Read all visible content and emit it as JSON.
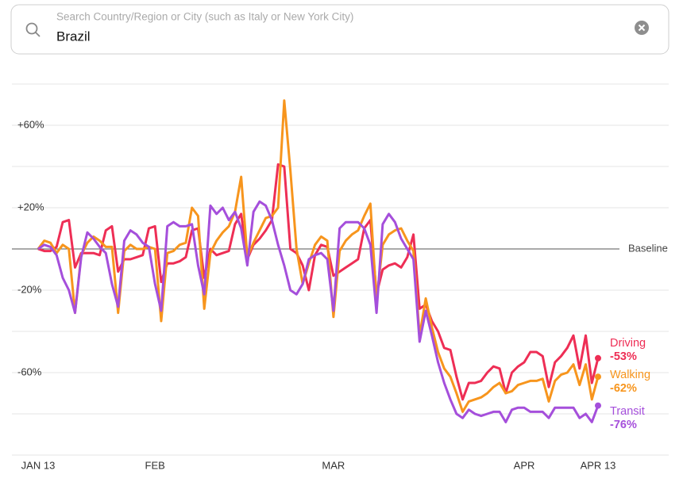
{
  "search": {
    "placeholder": "Search Country/Region or City (such as Italy or New York City)",
    "query": "Brazil"
  },
  "chart_data": {
    "type": "line",
    "x": [
      0,
      1,
      2,
      3,
      4,
      5,
      6,
      7,
      8,
      9,
      10,
      11,
      12,
      13,
      14,
      15,
      16,
      17,
      18,
      19,
      20,
      21,
      22,
      23,
      24,
      25,
      26,
      27,
      28,
      29,
      30,
      31,
      32,
      33,
      34,
      35,
      36,
      37,
      38,
      39,
      40,
      41,
      42,
      43,
      44,
      45,
      46,
      47,
      48,
      49,
      50,
      51,
      52,
      53,
      54,
      55,
      56,
      57,
      58,
      59,
      60,
      61,
      62,
      63,
      64,
      65,
      66,
      67,
      68,
      69,
      70,
      71,
      72,
      73,
      74,
      75,
      76,
      77,
      78,
      79,
      80,
      81,
      82,
      83,
      84,
      85,
      86,
      87,
      88,
      89,
      90,
      91
    ],
    "xlim": [
      0,
      91
    ],
    "xticks": [
      {
        "value": 0,
        "label": "JAN 13"
      },
      {
        "value": 19,
        "label": "FEB"
      },
      {
        "value": 48,
        "label": "MAR"
      },
      {
        "value": 79,
        "label": "APR"
      },
      {
        "value": 91,
        "label": "APR 13"
      }
    ],
    "ylim": [
      -100,
      80
    ],
    "yticks": [
      {
        "value": 60,
        "label": "+60%"
      },
      {
        "value": 20,
        "label": "+20%"
      },
      {
        "value": -20,
        "label": "-20%"
      },
      {
        "value": -60,
        "label": "-60%"
      }
    ],
    "ygrid": [
      80,
      60,
      40,
      20,
      -20,
      -40,
      -60,
      -80,
      -100
    ],
    "baseline": {
      "value": 0,
      "label": "Baseline"
    },
    "series": [
      {
        "name": "Driving",
        "color": "#ee2e55",
        "last_label": "-53%",
        "values": [
          0,
          -1,
          -1,
          1,
          13,
          14,
          -9,
          -2,
          -2,
          -2,
          -3,
          9,
          11,
          -11,
          -5,
          -5,
          -4,
          -3,
          10,
          11,
          -16,
          -7,
          -7,
          -6,
          -4,
          9,
          10,
          -14,
          0,
          -3,
          -2,
          -1,
          12,
          17,
          -5,
          2,
          5,
          9,
          14,
          41,
          40,
          0,
          -2,
          -8,
          -20,
          -3,
          2,
          1,
          -13,
          -11,
          -9,
          -7,
          -5,
          10,
          14,
          -22,
          -10,
          -8,
          -7,
          -9,
          -4,
          7,
          -29,
          -27,
          -35,
          -40,
          -48,
          -49,
          -62,
          -73,
          -65,
          -65,
          -64,
          -60,
          -57,
          -58,
          -70,
          -60,
          -57,
          -55,
          -50,
          -50,
          -52,
          -67,
          -55,
          -52,
          -48,
          -42,
          -58,
          -42,
          -65,
          -53
        ]
      },
      {
        "name": "Walking",
        "color": "#f7951d",
        "last_label": "-62%",
        "values": [
          0,
          4,
          3,
          -2,
          2,
          0,
          -31,
          -3,
          3,
          6,
          4,
          1,
          1,
          -31,
          -1,
          2,
          0,
          0,
          1,
          0,
          -35,
          -2,
          -1,
          2,
          3,
          20,
          16,
          -29,
          -2,
          4,
          8,
          11,
          18,
          35,
          -4,
          3,
          9,
          15,
          16,
          20,
          72,
          38,
          0,
          -17,
          -7,
          2,
          6,
          4,
          -33,
          -1,
          4,
          7,
          9,
          16,
          22,
          -25,
          2,
          7,
          9,
          10,
          4,
          -1,
          -42,
          -24,
          -38,
          -50,
          -58,
          -62,
          -70,
          -79,
          -74,
          -73,
          -72,
          -70,
          -67,
          -65,
          -70,
          -69,
          -66,
          -65,
          -64,
          -64,
          -63,
          -74,
          -64,
          -61,
          -60,
          -56,
          -66,
          -56,
          -73,
          -62
        ]
      },
      {
        "name": "Transit",
        "color": "#a54fdb",
        "last_label": "-76%",
        "values": [
          0,
          2,
          1,
          -3,
          -14,
          -20,
          -31,
          -4,
          8,
          5,
          1,
          -2,
          -17,
          -28,
          4,
          9,
          7,
          3,
          1,
          -17,
          -30,
          11,
          13,
          11,
          11,
          12,
          -8,
          -22,
          21,
          17,
          20,
          14,
          18,
          10,
          -8,
          18,
          23,
          21,
          14,
          2,
          -8,
          -20,
          -22,
          -17,
          -5,
          -3,
          -2,
          -5,
          -30,
          10,
          13,
          13,
          13,
          10,
          2,
          -31,
          12,
          17,
          13,
          5,
          0,
          -5,
          -45,
          -30,
          -42,
          -55,
          -65,
          -73,
          -80,
          -82,
          -78,
          -80,
          -81,
          -80,
          -79,
          -79,
          -84,
          -78,
          -77,
          -77,
          -79,
          -79,
          -79,
          -82,
          -77,
          -77,
          -77,
          -77,
          -82,
          -80,
          -84,
          -76
        ]
      }
    ]
  }
}
